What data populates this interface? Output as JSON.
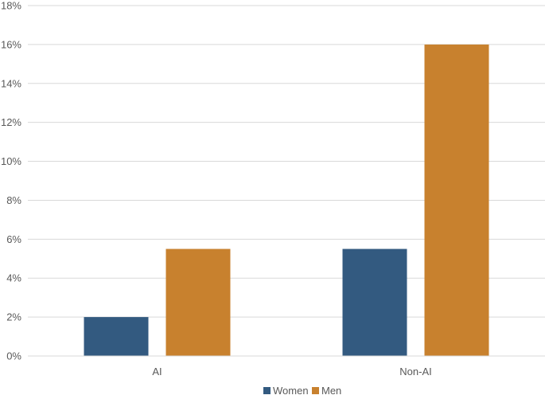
{
  "chart_data": {
    "type": "bar",
    "categories": [
      "AI",
      "Non-AI"
    ],
    "series": [
      {
        "name": "Women",
        "values": [
          2,
          5.5
        ],
        "color": "#335a80"
      },
      {
        "name": "Men",
        "values": [
          5.5,
          16
        ],
        "color": "#c8812e"
      }
    ],
    "ylim": [
      0,
      18
    ],
    "y_ticks": [
      0,
      2,
      4,
      6,
      8,
      10,
      12,
      14,
      16,
      18
    ],
    "y_tick_format": "percent",
    "grid": true,
    "gridline_color": "#d9d9d9",
    "legend_placement": "bottom",
    "title": "",
    "xlabel": "",
    "ylabel": ""
  }
}
